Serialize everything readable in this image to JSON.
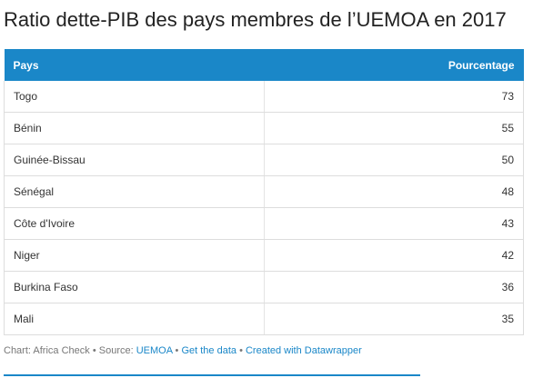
{
  "chart_data": {
    "type": "table",
    "title": "Ratio dette-PIB des pays membres de l’UEMOA en 2017",
    "columns": [
      "Pays",
      "Pourcentage"
    ],
    "rows": [
      {
        "country": "Togo",
        "value": 73
      },
      {
        "country": "Bénin",
        "value": 55
      },
      {
        "country": "Guinée-Bissau",
        "value": 50
      },
      {
        "country": "Sénégal",
        "value": 48
      },
      {
        "country": "Côte d'Ivoire",
        "value": 43
      },
      {
        "country": "Niger",
        "value": 42
      },
      {
        "country": "Burkina Faso",
        "value": 36
      },
      {
        "country": "Mali",
        "value": 35
      }
    ]
  },
  "footer": {
    "chart_credit": "Chart: Africa Check",
    "source_label": "Source:",
    "source_name": "UEMOA",
    "get_data": "Get the data",
    "created_with": "Created with Datawrapper",
    "separator": "•"
  },
  "colors": {
    "header_background": "#1a87c8",
    "link": "#1a87c8"
  }
}
